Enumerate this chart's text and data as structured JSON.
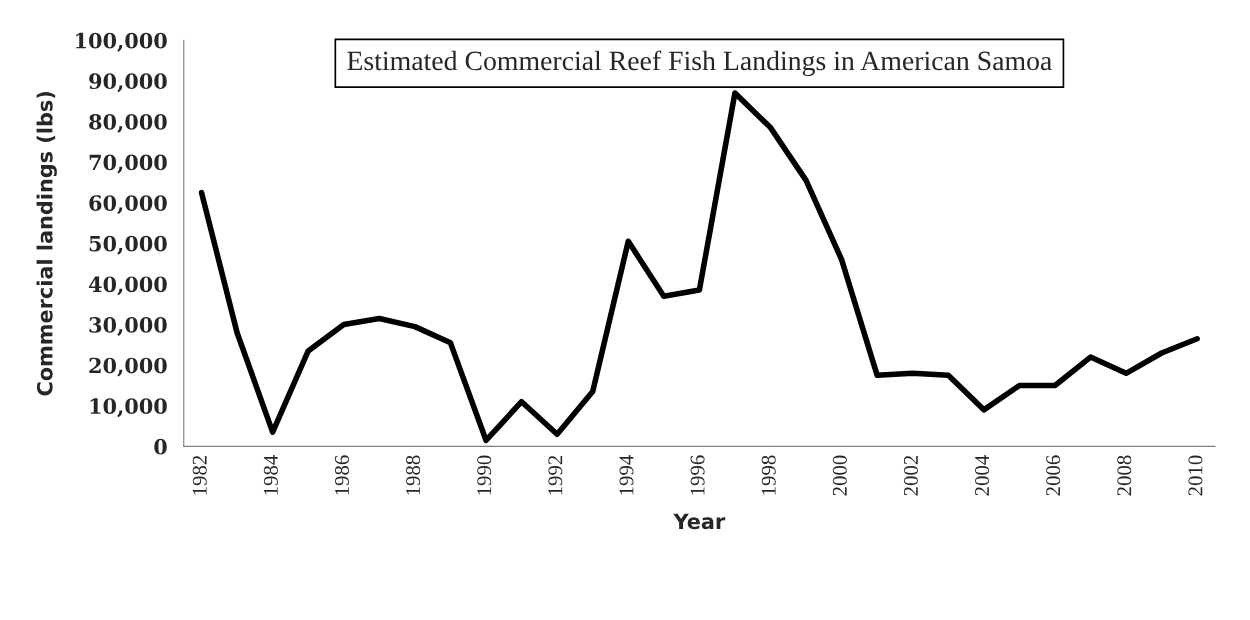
{
  "chart_data": {
    "type": "line",
    "title": "Estimated Commercial Reef Fish Landings in American Samoa",
    "xlabel": "Year",
    "ylabel": "Commercial landings (lbs)",
    "categories": [
      "1982",
      null,
      "1984",
      null,
      "1986",
      null,
      "1988",
      null,
      "1990",
      null,
      "1992",
      null,
      "1994",
      null,
      "1996",
      null,
      "1998",
      null,
      "2000",
      null,
      "2002",
      null,
      "2004",
      null,
      "2006",
      null,
      "2008",
      null,
      "2010"
    ],
    "series": [
      {
        "color": "#000000",
        "values": [
          62500,
          28000,
          3500,
          23500,
          30000,
          31500,
          29500,
          25500,
          1500,
          11000,
          3000,
          13500,
          50500,
          37000,
          38500,
          87000,
          78500,
          65500,
          46000,
          17500,
          18000,
          17500,
          9000,
          15000,
          15000,
          22000,
          18000,
          23000,
          26500
        ]
      }
    ],
    "ylim": [
      0,
      100000
    ],
    "yticks": [
      0,
      {
        "value": 10000,
        "label": "10,000"
      },
      {
        "value": 20000,
        "label": "20,000"
      },
      {
        "value": 30000,
        "label": "30,000"
      },
      {
        "value": 40000,
        "label": "40,000"
      },
      {
        "value": 50000,
        "label": "50,000"
      },
      {
        "value": 60000,
        "label": "60,000"
      },
      {
        "value": 70000,
        "label": "70,000"
      },
      {
        "value": 80000,
        "label": "80,000"
      },
      {
        "value": 90000,
        "label": "90,000"
      },
      {
        "value": 100000,
        "label": "100,000"
      }
    ],
    "grid": false,
    "marker": "none",
    "line_style": "solid"
  }
}
